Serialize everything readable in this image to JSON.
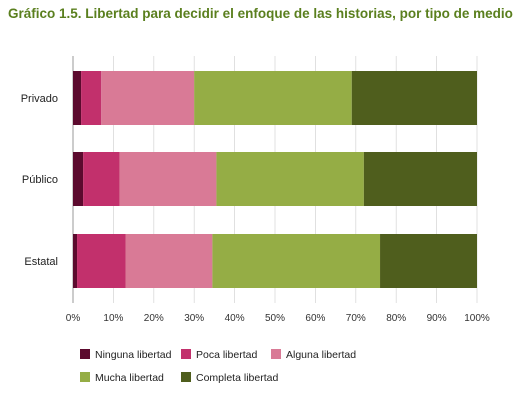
{
  "chart_data": {
    "type": "bar",
    "orientation": "horizontal",
    "stacked": true,
    "title": "Gráfico 1.5. Libertad para decidir el enfoque de las historias, por tipo de medio",
    "categories": [
      "Privado",
      "Público",
      "Estatal"
    ],
    "series": [
      {
        "name": "Ninguna libertad",
        "color": "#5c0a2e",
        "values": [
          2,
          2.5,
          1
        ]
      },
      {
        "name": "Poca libertad",
        "color": "#c2306c",
        "values": [
          5,
          9,
          12
        ]
      },
      {
        "name": "Alguna libertad",
        "color": "#d97a96",
        "values": [
          23,
          24,
          21.5
        ]
      },
      {
        "name": "Mucha libertad",
        "color": "#95ad45",
        "values": [
          39,
          36.5,
          41.5
        ]
      },
      {
        "name": "Completa libertad",
        "color": "#4f5e1d",
        "values": [
          31,
          28,
          24
        ]
      }
    ],
    "xlim": [
      0,
      100
    ],
    "xticks": [
      "0%",
      "10%",
      "20%",
      "30%",
      "40%",
      "50%",
      "60%",
      "70%",
      "80%",
      "90%",
      "100%"
    ],
    "grid": true,
    "legend": "bottom"
  }
}
